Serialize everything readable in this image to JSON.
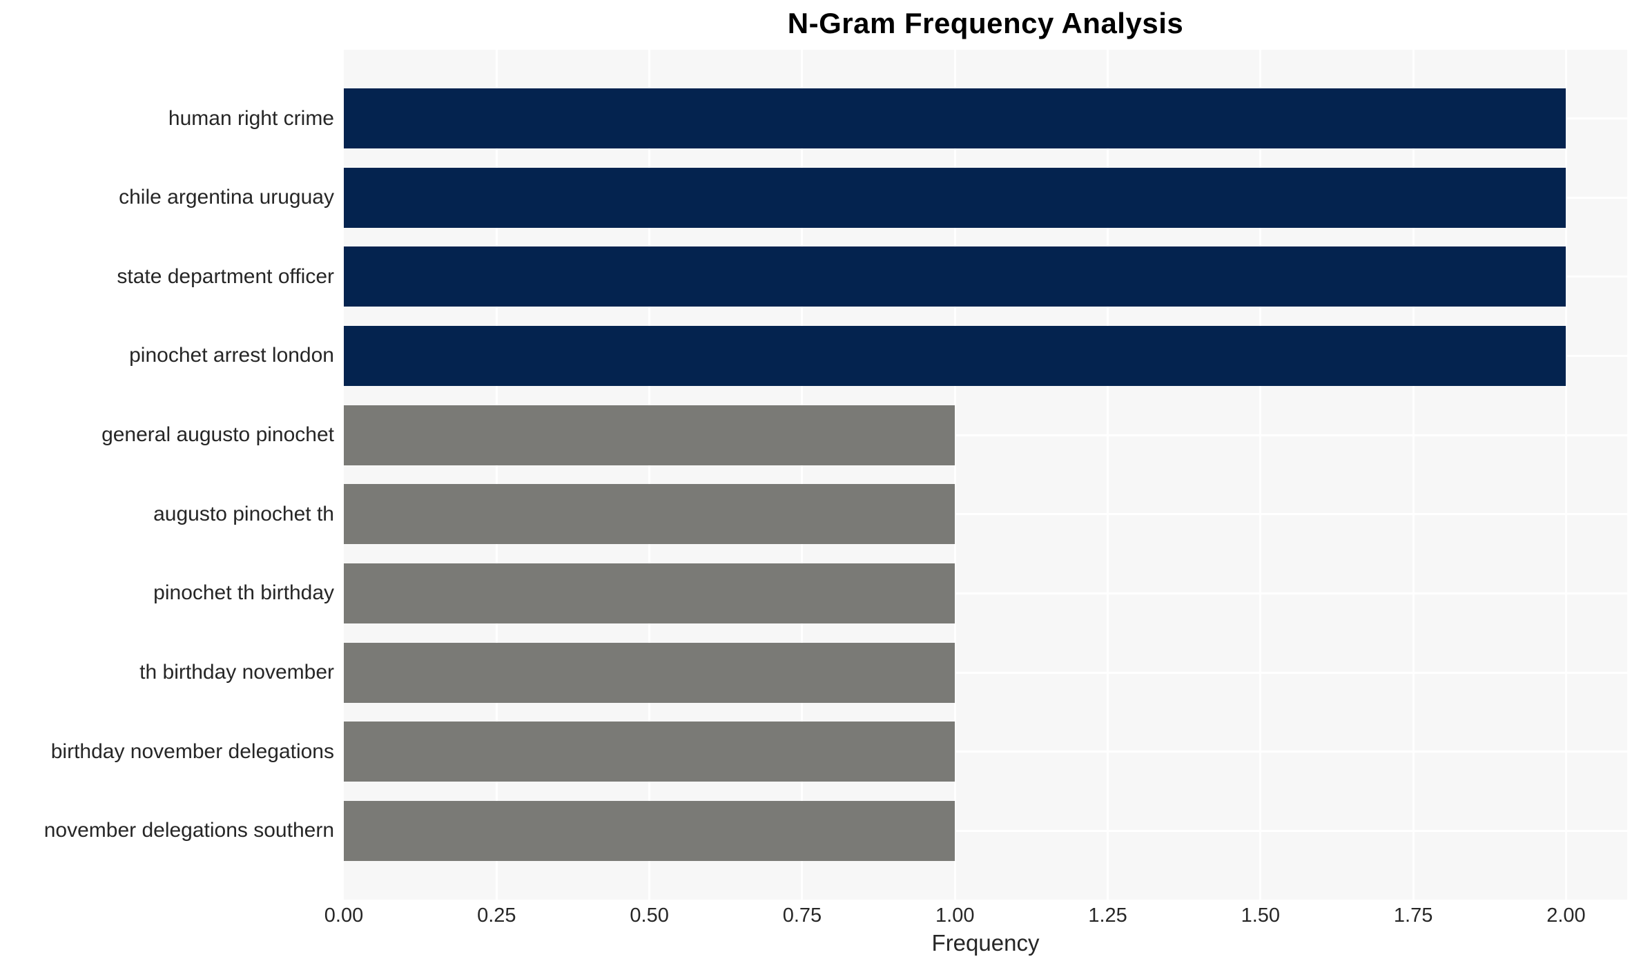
{
  "chart_data": {
    "type": "bar",
    "orientation": "horizontal",
    "title": "N-Gram Frequency Analysis",
    "xlabel": "Frequency",
    "ylabel": "",
    "categories": [
      "human right crime",
      "chile argentina uruguay",
      "state department officer",
      "pinochet arrest london",
      "general augusto pinochet",
      "augusto pinochet th",
      "pinochet th birthday",
      "th birthday november",
      "birthday november delegations",
      "november delegations southern"
    ],
    "values": [
      2,
      2,
      2,
      2,
      1,
      1,
      1,
      1,
      1,
      1
    ],
    "bar_colors": [
      "#04234f",
      "#04234f",
      "#04234f",
      "#04234f",
      "#7a7a76",
      "#7a7a76",
      "#7a7a76",
      "#7a7a76",
      "#7a7a76",
      "#7a7a76"
    ],
    "xlim": [
      0,
      2.1
    ],
    "xticks": [
      0,
      0.25,
      0.5,
      0.75,
      1.0,
      1.25,
      1.5,
      1.75,
      2.0
    ],
    "xtick_labels": [
      "0.00",
      "0.25",
      "0.50",
      "0.75",
      "1.00",
      "1.25",
      "1.50",
      "1.75",
      "2.00"
    ],
    "grid": true,
    "legend": false,
    "colors": {
      "high_value_bar": "#04234f",
      "low_value_bar": "#7a7a76",
      "plot_background": "#f7f7f7",
      "gridline": "#ffffff",
      "text": "#262626",
      "title": "#000000"
    }
  }
}
